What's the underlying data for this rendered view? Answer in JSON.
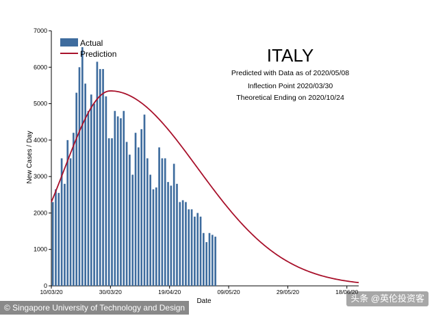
{
  "chart_data": {
    "type": "bar",
    "title": "ITALY",
    "subtitle_lines": [
      "Predicted with Data as of 2020/05/08",
      "Inflection Point 2020/03/30",
      "Theoretical Ending on 2020/10/24"
    ],
    "xlabel": "Date",
    "ylabel": "New Cases / Day",
    "ylim": [
      0,
      7000
    ],
    "yticks": [
      0,
      1000,
      2000,
      3000,
      4000,
      5000,
      6000,
      7000
    ],
    "xtick_labels": [
      "10/03/20",
      "30/03/20",
      "19/04/20",
      "09/05/20",
      "29/05/20",
      "18/06/20"
    ],
    "legend": {
      "position": "top-left",
      "entries": [
        "Actual",
        "Prediction"
      ]
    },
    "grid": false,
    "series": [
      {
        "name": "Actual",
        "kind": "bar",
        "color": "#3e6c9e",
        "start_date": "2020-03-10",
        "values": [
          2300,
          2650,
          2550,
          3500,
          2800,
          4000,
          3500,
          4200,
          5300,
          6000,
          6550,
          5550,
          4800,
          5250,
          5000,
          6150,
          5950,
          5950,
          5200,
          4050,
          4050,
          4800,
          4650,
          4600,
          4800,
          3950,
          3600,
          3050,
          4200,
          3800,
          4300,
          4700,
          3500,
          3050,
          2650,
          2700,
          3800,
          3500,
          3500,
          2850,
          2750,
          3350,
          2800,
          2300,
          2350,
          2300,
          2100,
          2100,
          1900,
          2000,
          1900,
          1450,
          1200,
          1450,
          1400,
          1350
        ]
      },
      {
        "name": "Prediction",
        "kind": "line",
        "color": "#a8102a",
        "peak_date": "2020-03-30",
        "peak_value": 5350,
        "end_date": "2020-06-22",
        "end_value": 90
      }
    ]
  },
  "footer": {
    "credit": "© Singapore University of Technology and Design",
    "watermark": "头条 @英伦投资客"
  }
}
